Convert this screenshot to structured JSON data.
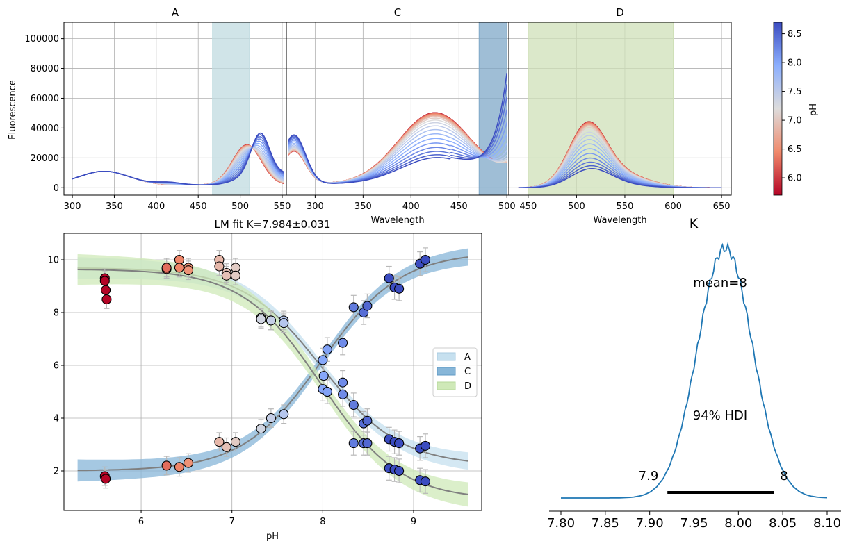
{
  "chart_data": [
    {
      "type": "line",
      "panel": "A",
      "title": "A",
      "xlabel": "",
      "ylabel": "Fluorescence",
      "xlim": [
        290,
        555
      ],
      "ylim": [
        -5000,
        111000
      ],
      "xticks": [
        "300",
        "350",
        "400",
        "450",
        "500",
        "550"
      ],
      "yticks": [
        "0",
        "20000",
        "40000",
        "60000",
        "80000",
        "100000"
      ],
      "highlight_band": [
        467,
        511
      ],
      "grid": true
    },
    {
      "type": "line",
      "panel": "C",
      "title": "C",
      "xlabel": "Wavelength",
      "xlim": [
        270,
        502
      ],
      "ylim": [
        -5000,
        111000
      ],
      "xticks": [
        "300",
        "350",
        "400",
        "450",
        "500"
      ],
      "highlight_band": [
        471,
        500
      ],
      "grid": true
    },
    {
      "type": "line",
      "panel": "D",
      "title": "D",
      "xlabel": "Wavelength",
      "xlim": [
        430,
        660
      ],
      "ylim": [
        -5000,
        111000
      ],
      "xticks": [
        "450",
        "500",
        "550",
        "600",
        "650"
      ],
      "highlight_band": [
        450,
        600
      ],
      "grid": true
    },
    {
      "type": "colorbar",
      "label": "pH",
      "range": [
        5.7,
        8.7
      ],
      "ticks": [
        "6.0",
        "6.5",
        "7.0",
        "7.5",
        "8.0",
        "8.5"
      ]
    },
    {
      "type": "scatter",
      "title": "LM fit K=7.984±0.031",
      "xlabel": "pH",
      "ylabel": "",
      "xlim": [
        5.15,
        9.75
      ],
      "ylim": [
        0.5,
        11
      ],
      "xticks": [
        "6",
        "7",
        "8",
        "9"
      ],
      "yticks": [
        "2",
        "4",
        "6",
        "8",
        "10"
      ],
      "legend": {
        "position": "right",
        "entries": [
          "A",
          "C",
          "D"
        ]
      },
      "grid": true,
      "fit_K": 7.984,
      "series": [
        {
          "name": "A",
          "fit": {
            "low": 2.2,
            "high": 9.7
          },
          "x": [
            5.6,
            6.28,
            6.42,
            6.52,
            6.86,
            6.94,
            7.04,
            7.32,
            7.43,
            7.57,
            8.01,
            8.05,
            8.22,
            8.34,
            8.45,
            8.49,
            8.73,
            8.79,
            8.84,
            9.07,
            9.13
          ],
          "y": [
            9.3,
            9.65,
            10.0,
            9.7,
            10.0,
            9.5,
            9.7,
            7.8,
            7.7,
            7.7,
            5.6,
            5.0,
            4.9,
            4.5,
            3.8,
            3.9,
            3.2,
            3.1,
            3.05,
            2.85,
            2.95
          ]
        },
        {
          "name": "C",
          "fit": {
            "low": 2.0,
            "high": 10.3
          },
          "x": [
            5.6,
            5.61,
            6.28,
            6.42,
            6.52,
            6.86,
            6.94,
            7.04,
            7.32,
            7.43,
            7.57,
            8.0,
            8.05,
            8.22,
            8.34,
            8.45,
            8.49,
            8.73,
            8.79,
            8.84,
            9.07,
            9.13
          ],
          "y": [
            1.8,
            1.7,
            2.2,
            2.15,
            2.3,
            3.1,
            2.9,
            3.1,
            3.6,
            4.0,
            4.15,
            6.2,
            6.6,
            6.85,
            8.2,
            8.0,
            8.25,
            9.3,
            8.95,
            8.9,
            9.85,
            10.0
          ]
        },
        {
          "name": "D",
          "fit": {
            "low": 0.9,
            "high": 9.65
          },
          "x": [
            5.6,
            5.61,
            5.62,
            6.28,
            6.42,
            6.52,
            6.86,
            6.94,
            7.04,
            7.32,
            7.43,
            7.57,
            8.0,
            8.05,
            8.22,
            8.34,
            8.45,
            8.49,
            8.73,
            8.79,
            8.84,
            9.07,
            9.13
          ],
          "y": [
            9.2,
            8.85,
            8.5,
            9.7,
            9.7,
            9.6,
            9.75,
            9.4,
            9.4,
            7.75,
            7.7,
            7.6,
            5.1,
            5.0,
            5.35,
            3.05,
            3.05,
            3.05,
            2.1,
            2.05,
            2.0,
            1.65,
            1.6
          ]
        }
      ]
    },
    {
      "type": "area",
      "title": "K",
      "xlim": [
        7.795,
        8.11
      ],
      "xticks": [
        "7.80",
        "7.85",
        "7.90",
        "7.95",
        "8.00",
        "8.05",
        "8.10"
      ],
      "hdi_low": 7.92,
      "hdi_high": 8.04
    }
  ],
  "annotations": {
    "mean_label": "mean=8",
    "hdi_label": "94% HDI",
    "hdi_low_label": "7.9",
    "hdi_high_label": "8"
  },
  "colors": {
    "band_A": "#c0dbe0",
    "band_C": "#7fa8c8",
    "band_D": "#cfe0b8",
    "legend_A": "#c6e0ef",
    "legend_C": "#87b6d8",
    "legend_D": "#cfe9b8",
    "fit_line": "#7f7f7f",
    "posterior": "#1f77b4",
    "hdi": "#000000"
  }
}
